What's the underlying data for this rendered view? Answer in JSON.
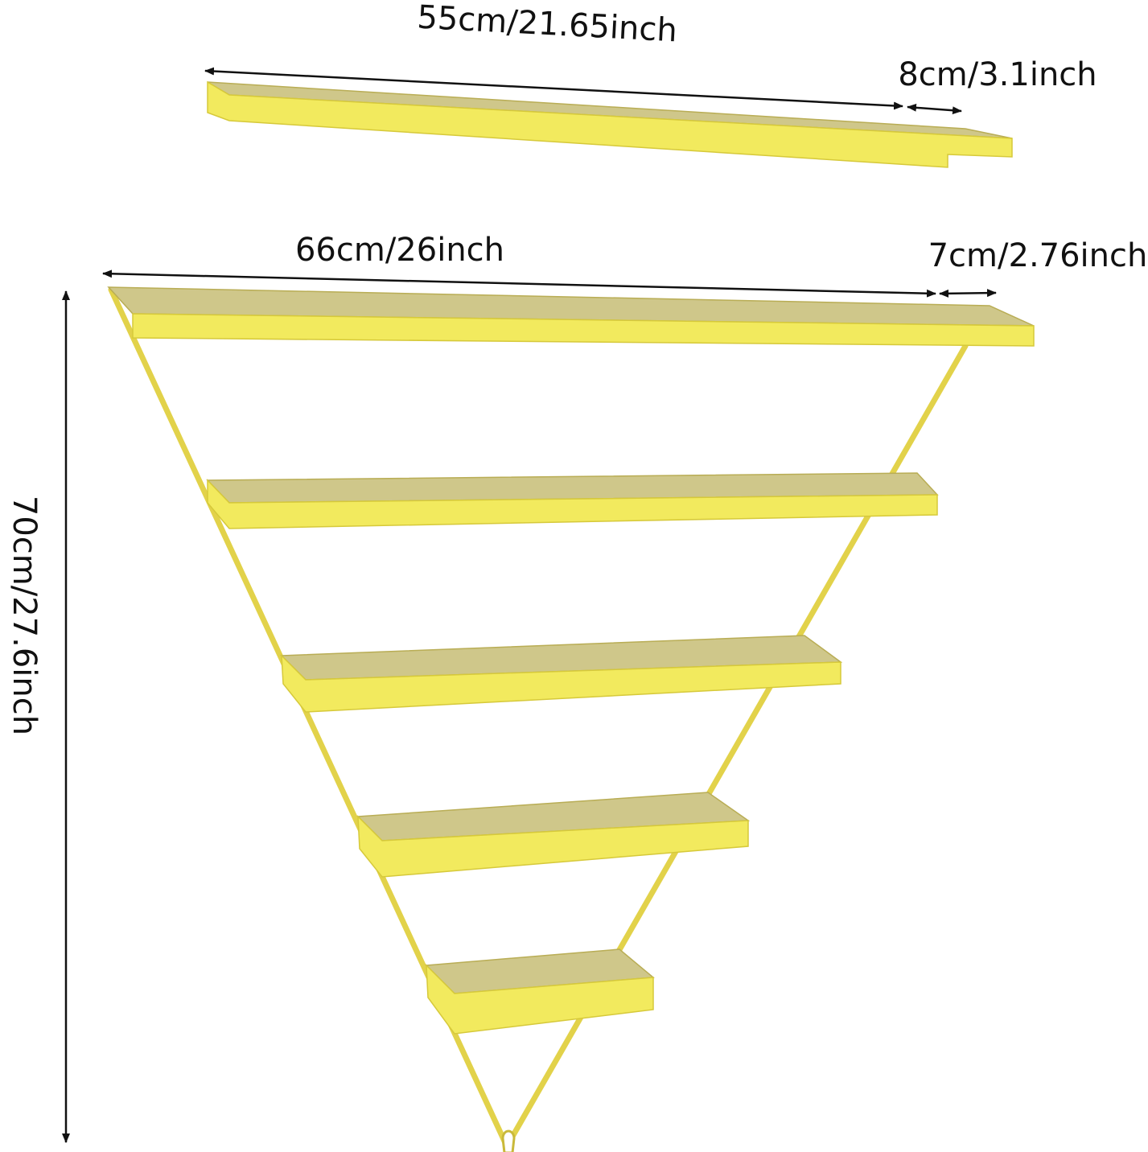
{
  "dimensions": {
    "upper_shelf_length": "55cm/21.65inch",
    "upper_shelf_depth": "8cm/3.1inch",
    "frame_width": "66cm/26inch",
    "frame_shelf_depth": "7cm/2.76inch",
    "frame_height": "70cm/27.6inch"
  }
}
